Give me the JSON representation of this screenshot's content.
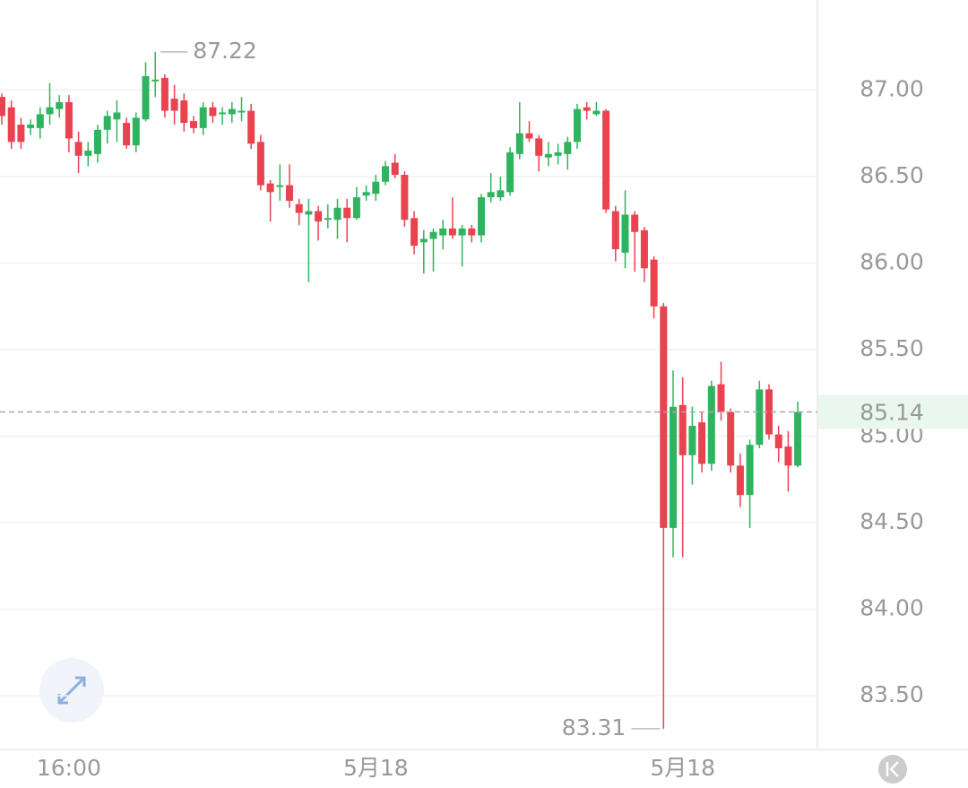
{
  "chart_data": {
    "type": "candlestick",
    "categories": [
      null,
      null,
      null,
      null,
      null,
      null,
      null,
      "16:00",
      null,
      null,
      null,
      null,
      null,
      null,
      null,
      null,
      null,
      null,
      null,
      null,
      null,
      null,
      null,
      null,
      null,
      null,
      null,
      null,
      null,
      null,
      null,
      null,
      null,
      null,
      null,
      null,
      null,
      null,
      null,
      "5月18",
      null,
      null,
      null,
      null,
      null,
      null,
      null,
      null,
      null,
      null,
      null,
      null,
      null,
      null,
      null,
      null,
      null,
      null,
      null,
      null,
      null,
      null,
      null,
      null,
      null,
      null,
      null,
      null,
      null,
      null,
      null,
      "5月18",
      null,
      null,
      null,
      null,
      null,
      null,
      null,
      null,
      null,
      null,
      null,
      null
    ],
    "open": [
      86.96,
      86.9,
      86.8,
      86.78,
      86.78,
      86.86,
      86.89,
      86.93,
      86.7,
      86.62,
      86.63,
      86.77,
      86.83,
      86.81,
      86.68,
      86.83,
      87.05,
      87.07,
      86.95,
      86.94,
      86.82,
      86.78,
      86.9,
      86.86,
      86.86,
      86.87,
      86.88,
      86.7,
      86.46,
      86.44,
      86.45,
      86.34,
      86.28,
      86.3,
      86.25,
      86.25,
      86.32,
      86.26,
      86.39,
      86.4,
      86.47,
      86.58,
      86.51,
      86.26,
      86.12,
      86.14,
      86.16,
      86.2,
      86.16,
      86.2,
      86.16,
      86.38,
      86.38,
      86.41,
      86.63,
      86.75,
      86.72,
      86.61,
      86.62,
      86.63,
      86.7,
      86.9,
      86.86,
      86.88,
      86.3,
      86.06,
      86.28,
      86.19,
      86.02,
      85.75,
      84.47,
      85.18,
      84.89,
      85.08,
      84.84,
      85.3,
      85.14,
      84.83,
      84.66,
      84.95,
      85.27,
      85.01,
      84.94,
      84.83
    ],
    "high": [
      86.98,
      86.94,
      86.84,
      86.83,
      86.9,
      87.04,
      86.97,
      86.97,
      86.76,
      86.7,
      86.8,
      86.88,
      86.94,
      86.84,
      86.87,
      87.16,
      87.22,
      87.09,
      87.03,
      86.98,
      86.85,
      86.93,
      86.93,
      86.9,
      86.93,
      86.96,
      86.92,
      86.74,
      86.48,
      86.57,
      86.57,
      86.37,
      86.37,
      86.33,
      86.34,
      86.37,
      86.37,
      86.44,
      86.45,
      86.51,
      86.59,
      86.63,
      86.53,
      86.3,
      86.19,
      86.2,
      86.25,
      86.38,
      86.22,
      86.22,
      86.4,
      86.52,
      86.5,
      86.67,
      86.93,
      86.82,
      86.74,
      86.7,
      86.69,
      86.73,
      86.92,
      86.93,
      86.93,
      86.89,
      86.33,
      86.42,
      86.3,
      86.21,
      86.04,
      85.77,
      85.38,
      85.34,
      85.17,
      85.14,
      85.32,
      85.43,
      85.16,
      84.9,
      84.98,
      85.32,
      85.3,
      85.06,
      85.03,
      85.2
    ],
    "low": [
      86.8,
      86.66,
      86.66,
      86.74,
      86.72,
      86.8,
      86.84,
      86.64,
      86.52,
      86.56,
      86.58,
      86.69,
      86.7,
      86.66,
      86.64,
      86.82,
      86.96,
      86.84,
      86.8,
      86.76,
      86.75,
      86.74,
      86.81,
      86.8,
      86.81,
      86.82,
      86.66,
      86.42,
      86.24,
      86.36,
      86.32,
      86.22,
      85.89,
      86.13,
      86.2,
      86.14,
      86.12,
      86.25,
      86.36,
      86.36,
      86.45,
      86.49,
      86.21,
      86.05,
      85.94,
      85.95,
      86.08,
      86.14,
      85.98,
      86.12,
      86.12,
      86.35,
      86.36,
      86.39,
      86.6,
      86.7,
      86.53,
      86.56,
      86.57,
      86.54,
      86.66,
      86.83,
      86.85,
      86.29,
      86.01,
      85.97,
      85.95,
      85.89,
      85.68,
      83.31,
      84.3,
      84.3,
      84.72,
      84.79,
      84.8,
      85.09,
      84.79,
      84.59,
      84.47,
      84.93,
      84.98,
      84.85,
      84.68,
      84.82
    ],
    "close": [
      86.85,
      86.7,
      86.7,
      86.8,
      86.86,
      86.9,
      86.93,
      86.72,
      86.62,
      86.65,
      86.77,
      86.85,
      86.87,
      86.68,
      86.84,
      87.08,
      87.06,
      86.88,
      86.88,
      86.81,
      86.78,
      86.9,
      86.85,
      86.87,
      86.89,
      86.88,
      86.69,
      86.45,
      86.41,
      86.45,
      86.36,
      86.29,
      86.3,
      86.24,
      86.26,
      86.32,
      86.26,
      86.38,
      86.41,
      86.47,
      86.56,
      86.51,
      86.25,
      86.1,
      86.14,
      86.18,
      86.2,
      86.16,
      86.2,
      86.16,
      86.38,
      86.41,
      86.42,
      86.64,
      86.75,
      86.72,
      86.62,
      86.63,
      86.64,
      86.7,
      86.89,
      86.88,
      86.88,
      86.31,
      86.08,
      86.28,
      86.18,
      85.97,
      85.75,
      84.47,
      85.17,
      84.89,
      85.06,
      84.84,
      85.29,
      85.14,
      84.83,
      84.66,
      84.95,
      85.27,
      85.01,
      84.93,
      84.83,
      85.14
    ],
    "up_color": "#2fb35e",
    "down_color": "#e8434f",
    "ylim": [
      83.19,
      87.52
    ],
    "yticks": [
      {
        "value": 83.5,
        "label": "83.50"
      },
      {
        "value": 84,
        "label": "84.00"
      },
      {
        "value": 84.5,
        "label": "84.50"
      },
      {
        "value": 85,
        "label": "85.00"
      },
      {
        "value": 85.5,
        "label": "85.50"
      },
      {
        "value": 86,
        "label": "86.00"
      },
      {
        "value": 86.5,
        "label": "86.50"
      },
      {
        "value": 87,
        "label": "87.00"
      }
    ],
    "grid": true,
    "annotations": {
      "high": 87.22,
      "low": 83.31,
      "last": 85.14
    }
  }
}
